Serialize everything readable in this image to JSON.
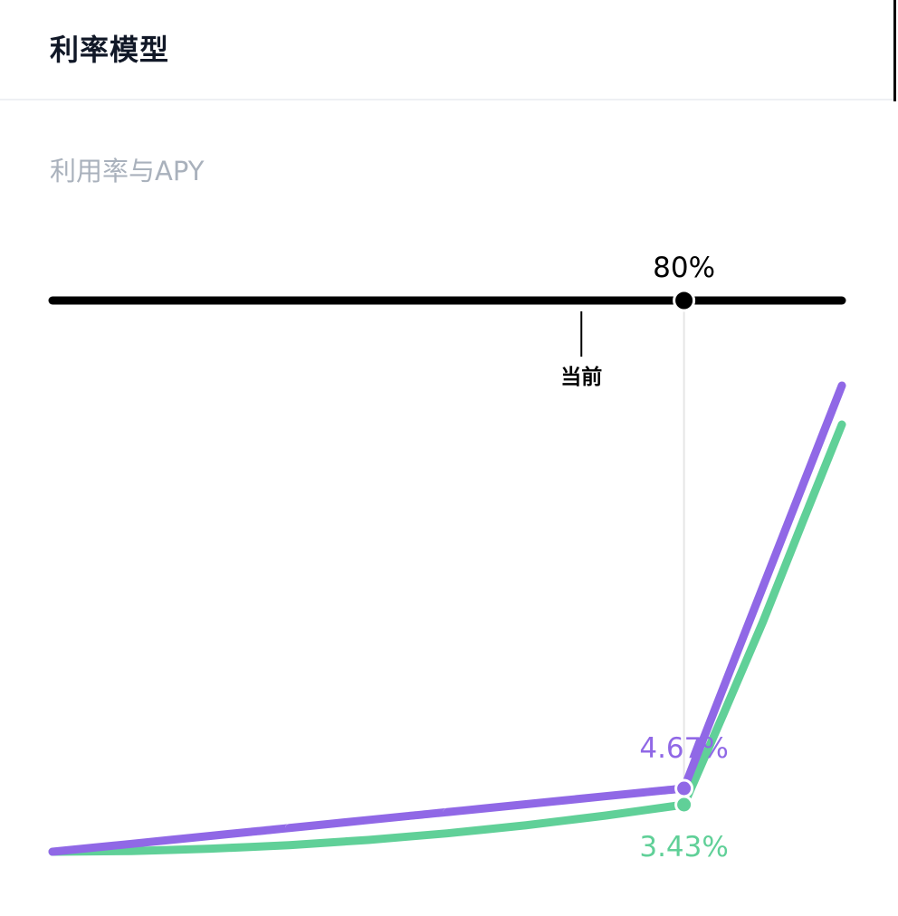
{
  "panel": {
    "title": "利率模型"
  },
  "colors": {
    "slider_track": "#000000",
    "borrow_line": "#9068e6",
    "supply_line": "#60d098",
    "guide_line": "#e6e6e6",
    "subtitle_text": "#a9b1bc"
  },
  "chart_data": {
    "type": "line",
    "title": "利用率与APY",
    "xlabel": "",
    "ylabel": "",
    "xlim": [
      0,
      100
    ],
    "grid": false,
    "current_marker_label": "当前",
    "current_utilization": 67,
    "selected_utilization": 80,
    "selected_utilization_label": "80%",
    "x": [
      0,
      10,
      20,
      30,
      40,
      50,
      60,
      70,
      80,
      85,
      90,
      95,
      100
    ],
    "series": [
      {
        "key": "borrow",
        "color": "#9068e6",
        "values": [
          0,
          0.58,
          1.17,
          1.75,
          2.34,
          2.92,
          3.5,
          4.09,
          4.67,
          13.6,
          22.5,
          31.4,
          40.3
        ],
        "selected_label": "4.67%"
      },
      {
        "key": "supply",
        "color": "#60d098",
        "values": [
          0,
          0.05,
          0.22,
          0.48,
          0.86,
          1.34,
          1.93,
          2.63,
          3.43,
          11.2,
          19.1,
          27.6,
          36.0
        ],
        "selected_label": "3.43%"
      }
    ]
  }
}
